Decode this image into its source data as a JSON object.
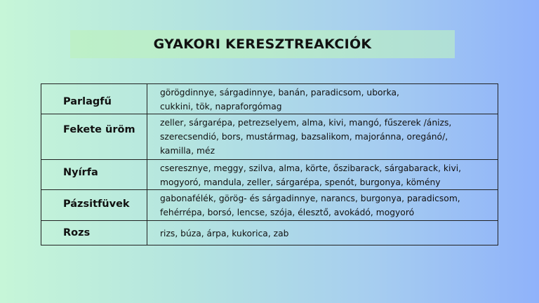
{
  "title": "GYAKORI KERESZTREAKCIÓK",
  "rows": [
    {
      "label": "Parlagfű",
      "items": "görögdinnye, sárgadinnye, banán, paradicsom, uborka, cukkini, tök, napraforgómag"
    },
    {
      "label": "Fekete üröm",
      "items": "zeller, sárgarépa, petrezselyem, alma, kivi, mangó, fűszerek /ánizs, szerecsendió, bors, mustármag, bazsalikom, majoránna, oregánó/, kamilla, méz"
    },
    {
      "label": "Nyírfa",
      "items": "cseresznye, meggy, szilva, alma, körte, őszibarack, sárgabarack, kivi, mogyoró, mandula, zeller, sárgarépa, spenót, burgonya, kömény"
    },
    {
      "label": "Pázsitfüvek",
      "items": "gabonafélék, görög- és sárgadinnye, narancs, burgonya, paradicsom, fehérrépa, borsó, lencse, szója, élesztő, avokádó, mogyoró"
    },
    {
      "label": "Rozs",
      "items": "rizs, búza, árpa, kukorica, zab"
    }
  ]
}
